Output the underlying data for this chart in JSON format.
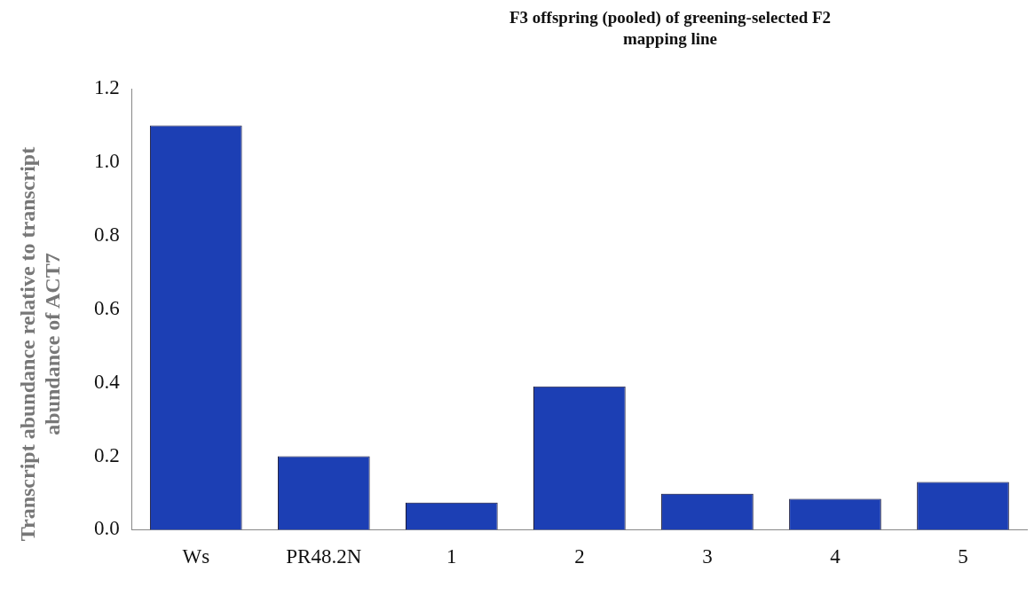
{
  "chart_data": {
    "type": "bar",
    "title": "F3 offspring (pooled) of greening-selected F2 mapping line",
    "ylabel": "Transcript abundance relative to transcript abundance of ACT7",
    "categories": [
      "Ws",
      "PR48.2N",
      "1",
      "2",
      "3",
      "4",
      "5"
    ],
    "values": [
      1.1,
      0.2,
      0.074,
      0.39,
      0.098,
      0.084,
      0.13
    ],
    "color": "#1c3fb4",
    "ylim": [
      0,
      1.2
    ],
    "yticks": [
      {
        "value": 0,
        "label": "0.0"
      },
      {
        "value": 0.2,
        "label": "0.2"
      },
      {
        "value": 0.4,
        "label": "0.4"
      },
      {
        "value": 0.6,
        "label": "0.6"
      },
      {
        "value": 0.8,
        "label": "0.8"
      },
      {
        "value": 1,
        "label": "1.0"
      },
      {
        "value": 1.2,
        "label": "1.2"
      }
    ],
    "grid": false,
    "legend": false
  }
}
